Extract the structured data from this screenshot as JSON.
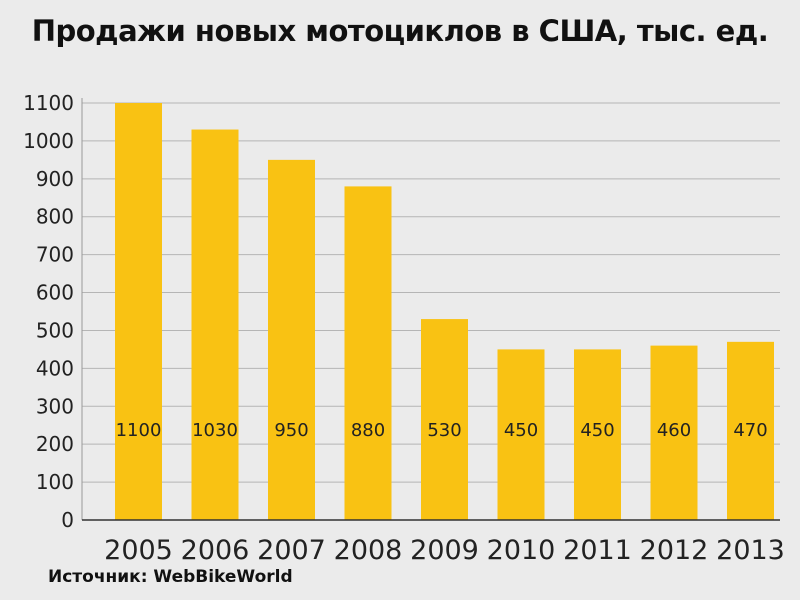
{
  "chart_data": {
    "type": "bar",
    "title": "Продажи новых мотоциклов в США, тыс. ед.",
    "source": "Источник: WebBikeWorld",
    "categories": [
      "2005",
      "2006",
      "2007",
      "2008",
      "2009",
      "2010",
      "2011",
      "2012",
      "2013"
    ],
    "values": [
      1100,
      1030,
      950,
      880,
      530,
      450,
      450,
      460,
      470
    ],
    "xlabel": "",
    "ylabel": "",
    "ylim": [
      0,
      1100
    ],
    "yticks": [
      0,
      100,
      200,
      300,
      400,
      500,
      600,
      700,
      800,
      900,
      1000,
      1100
    ],
    "grid": true,
    "bar_color": "#f9c213"
  }
}
